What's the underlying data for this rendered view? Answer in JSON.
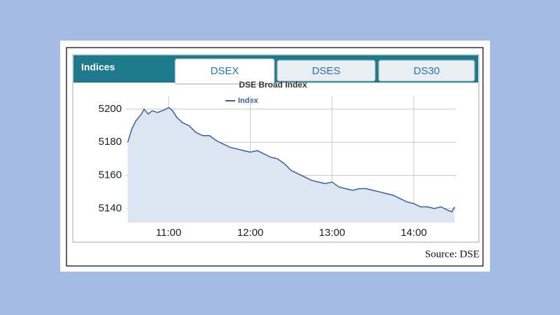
{
  "panel_title": "Indices",
  "tabs": [
    "DSEX",
    "DSES",
    "DS30"
  ],
  "source": "Source: DSE",
  "chart_data": {
    "type": "area",
    "title": "DSE Broad Index",
    "x": [
      630,
      633,
      636,
      640,
      642,
      645,
      648,
      652,
      655,
      658,
      660,
      663,
      666,
      670,
      675,
      680,
      685,
      690,
      695,
      700,
      705,
      710,
      715,
      720,
      725,
      730,
      735,
      740,
      745,
      750,
      755,
      760,
      765,
      770,
      775,
      780,
      785,
      790,
      795,
      800,
      805,
      810,
      815,
      820,
      825,
      830,
      835,
      840,
      845,
      850,
      855,
      860,
      865,
      868,
      870
    ],
    "series": [
      {
        "name": "Index",
        "color": "#3a5fa0",
        "fill": "#dce6f2",
        "values": [
          5180,
          5188,
          5193,
          5197,
          5200,
          5197,
          5199,
          5198,
          5199,
          5200,
          5201,
          5199,
          5195,
          5192,
          5190,
          5186,
          5184,
          5184,
          5181,
          5179,
          5177,
          5176,
          5175,
          5174,
          5175,
          5173,
          5171,
          5170,
          5167,
          5163,
          5161,
          5159,
          5157,
          5156,
          5155,
          5156,
          5153,
          5152,
          5151,
          5152,
          5152,
          5151,
          5150,
          5149,
          5148,
          5146,
          5144,
          5143,
          5141,
          5141,
          5140,
          5141,
          5139,
          5138,
          5141
        ]
      }
    ],
    "xlim": [
      630,
      870
    ],
    "xticks": [
      {
        "value": 660,
        "label": "11:00"
      },
      {
        "value": 720,
        "label": "12:00"
      },
      {
        "value": 780,
        "label": "13:00"
      },
      {
        "value": 840,
        "label": "14:00"
      }
    ],
    "ylim": [
      5131.5,
      5208
    ],
    "yticks": [
      5140,
      5160,
      5180,
      5200
    ],
    "grid": true
  }
}
